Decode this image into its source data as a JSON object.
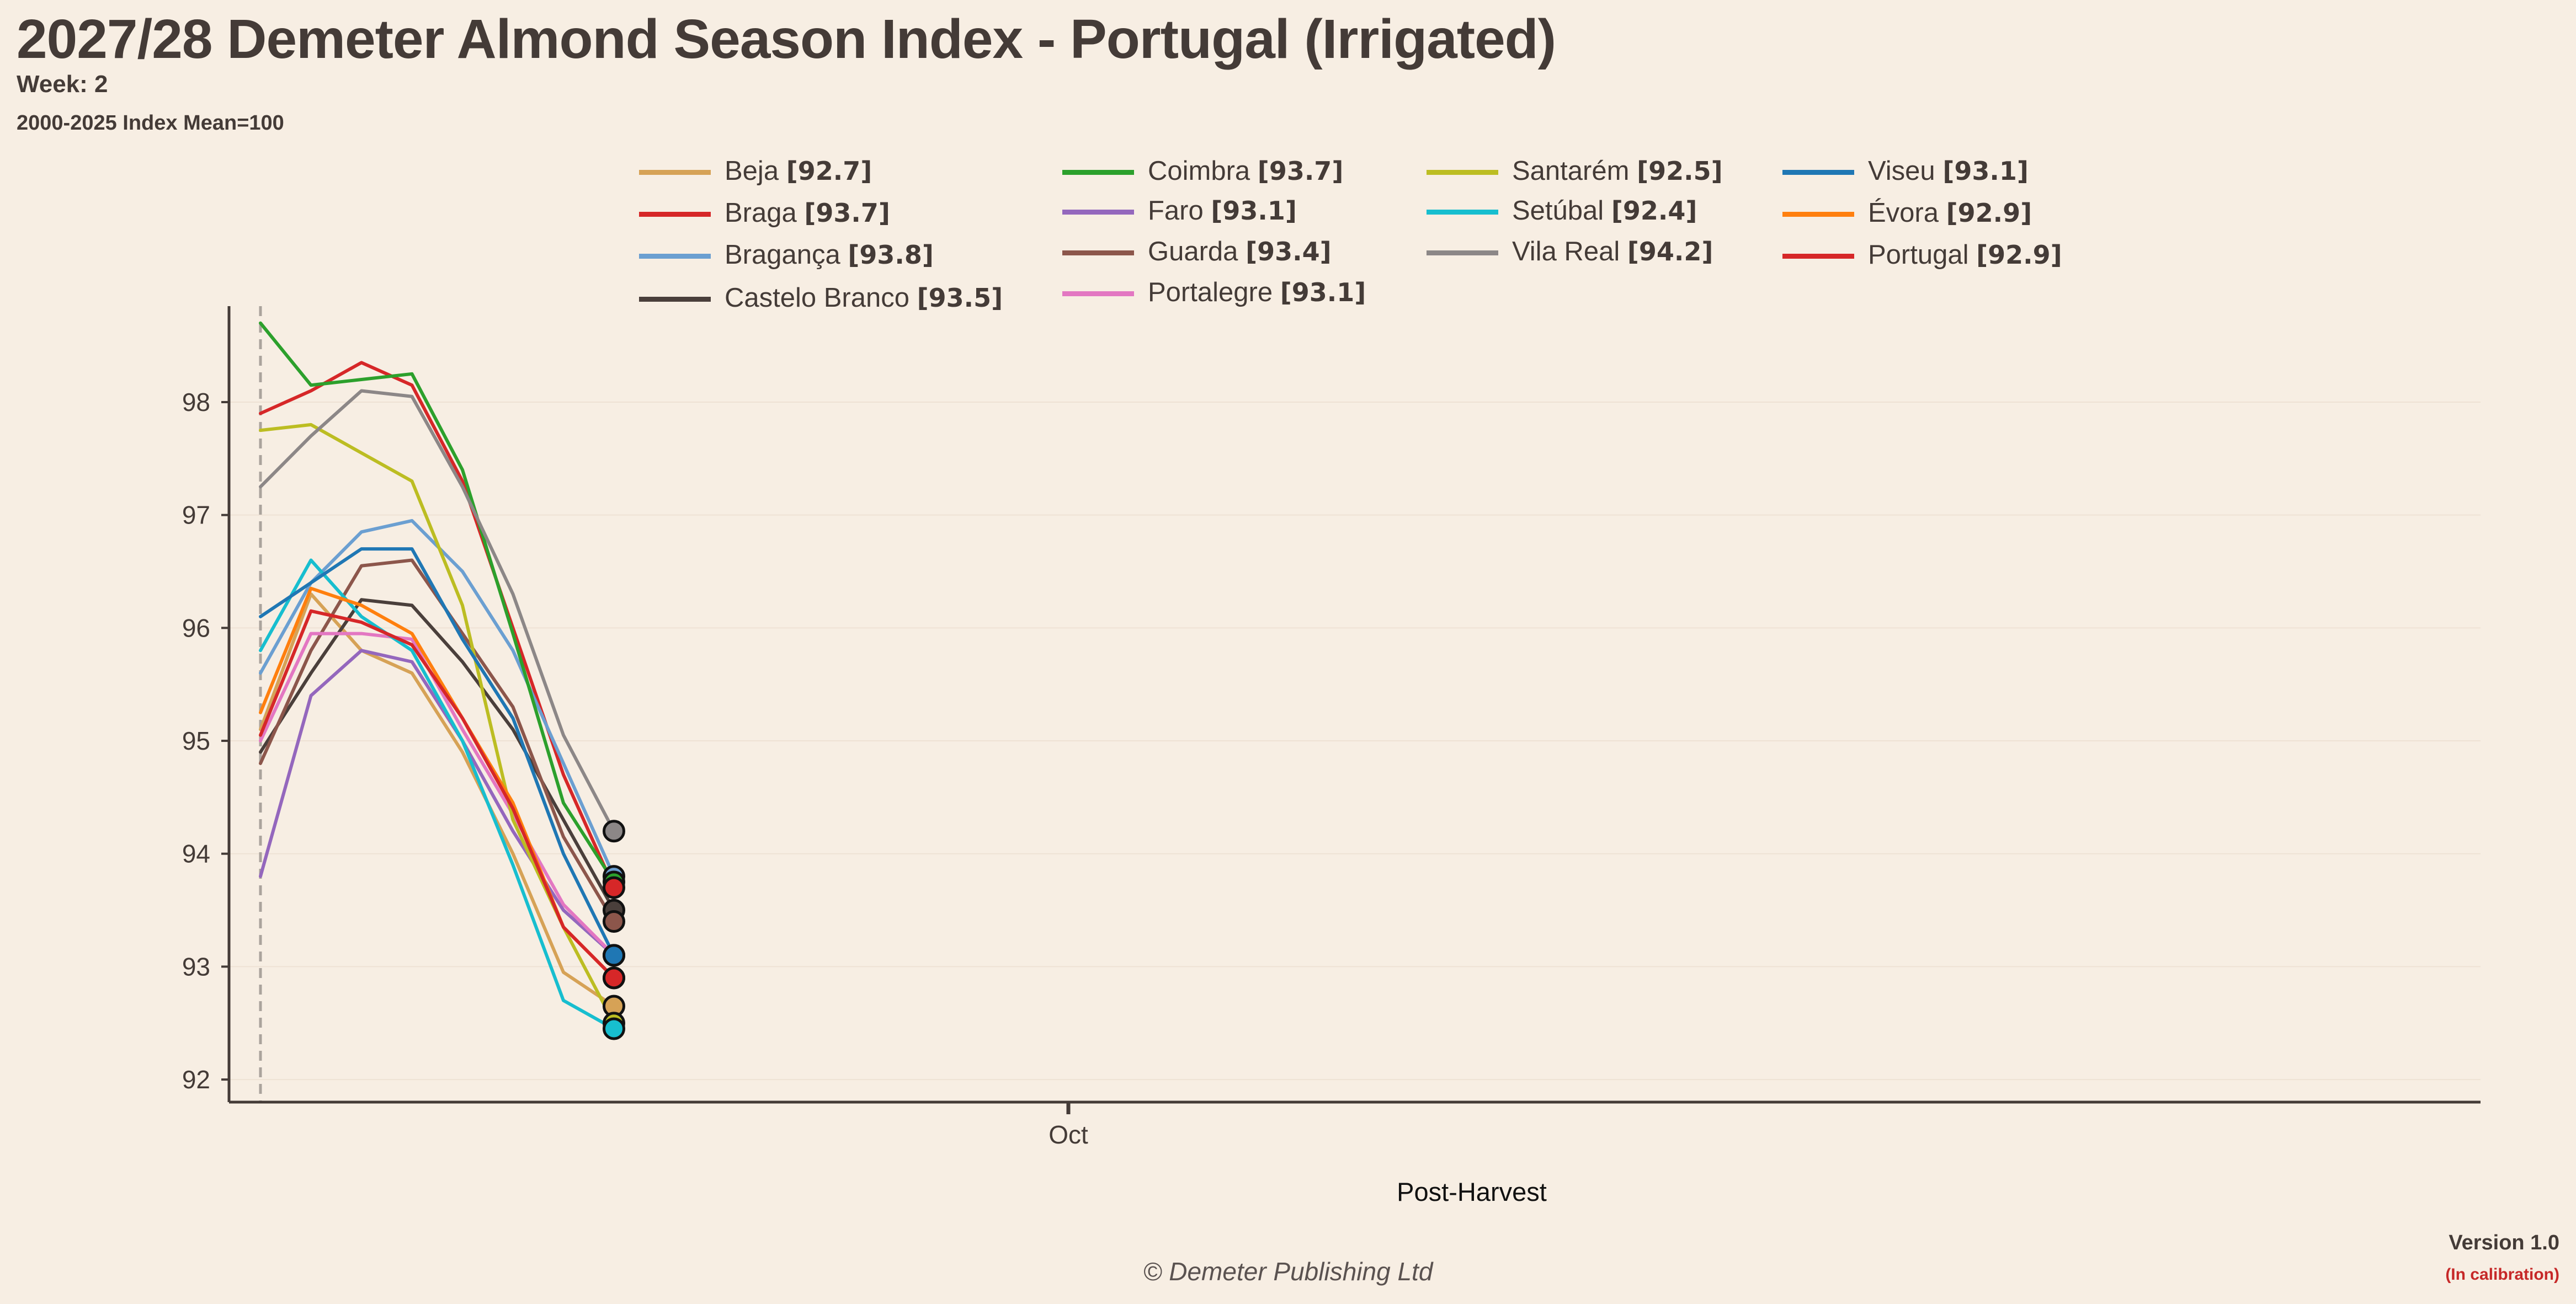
{
  "title": "2027/28 Demeter Almond Season Index - Portugal (Irrigated)",
  "week": "Week: 2",
  "subtitle": "2000-2025 Index Mean=100",
  "credit": "© Demeter Publishing Ltd",
  "version": "Version 1.0",
  "calibration": "(In calibration)",
  "chart_data": {
    "type": "line",
    "title": "2027/28 Demeter Almond Season Index - Portugal (Irrigated)",
    "xlabel": "Post-Harvest",
    "ylabel": "",
    "x": [
      0,
      1,
      2,
      3,
      4,
      5,
      6,
      7
    ],
    "x_ticks": [
      {
        "x": 16,
        "label": "Oct"
      }
    ],
    "xlim": [
      -0.6,
      43.6
    ],
    "ylim": [
      91.8,
      98.85
    ],
    "yticks": [
      92,
      93,
      94,
      95,
      96,
      97,
      98
    ],
    "grid": "horizontal",
    "legend_placement": "top",
    "series": [
      {
        "name": "Beja",
        "latest": "92.7",
        "color": "#d6a256",
        "values": [
          95.1,
          96.3,
          95.8,
          95.6,
          94.9,
          94.0,
          92.95,
          92.65
        ]
      },
      {
        "name": "Braga",
        "latest": "93.7",
        "color": "#d62728",
        "values": [
          97.9,
          98.1,
          98.35,
          98.15,
          97.3,
          96.0,
          94.7,
          93.7
        ]
      },
      {
        "name": "Bragança",
        "latest": "93.8",
        "color": "#6b9fd1",
        "values": [
          95.6,
          96.4,
          96.85,
          96.95,
          96.5,
          95.8,
          94.8,
          93.8
        ]
      },
      {
        "name": "Castelo Branco",
        "latest": "93.5",
        "color": "#4a3f3b",
        "values": [
          94.9,
          95.6,
          96.25,
          96.2,
          95.7,
          95.1,
          94.3,
          93.5
        ]
      },
      {
        "name": "Coimbra",
        "latest": "93.7",
        "color": "#2ca02c",
        "values": [
          98.7,
          98.15,
          98.2,
          98.25,
          97.4,
          95.95,
          94.45,
          93.75
        ]
      },
      {
        "name": "Faro",
        "latest": "93.1",
        "color": "#9467bd",
        "values": [
          93.8,
          95.4,
          95.8,
          95.7,
          95.0,
          94.2,
          93.5,
          93.1
        ]
      },
      {
        "name": "Guarda",
        "latest": "93.4",
        "color": "#8c564b",
        "values": [
          94.8,
          95.8,
          96.55,
          96.6,
          95.95,
          95.3,
          94.15,
          93.4
        ]
      },
      {
        "name": "Portalegre",
        "latest": "93.1",
        "color": "#e377c2",
        "values": [
          95.0,
          95.95,
          95.95,
          95.9,
          95.1,
          94.35,
          93.55,
          93.1
        ]
      },
      {
        "name": "Santarém",
        "latest": "92.5",
        "color": "#bcbd22",
        "values": [
          97.75,
          97.8,
          97.55,
          97.3,
          96.2,
          94.3,
          93.35,
          92.5
        ]
      },
      {
        "name": "Setúbal",
        "latest": "92.4",
        "color": "#17becf",
        "values": [
          95.8,
          96.6,
          96.1,
          95.8,
          95.0,
          93.9,
          92.7,
          92.45
        ]
      },
      {
        "name": "Vila Real",
        "latest": "94.2",
        "color": "#8c8787",
        "values": [
          97.25,
          97.7,
          98.1,
          98.05,
          97.25,
          96.3,
          95.05,
          94.2
        ]
      },
      {
        "name": "Viseu",
        "latest": "93.1",
        "color": "#1f77b4",
        "values": [
          96.1,
          96.4,
          96.7,
          96.7,
          95.9,
          95.2,
          94.0,
          93.1
        ]
      },
      {
        "name": "Évora",
        "latest": "92.9",
        "color": "#ff7f0e",
        "values": [
          95.25,
          96.35,
          96.2,
          95.95,
          95.2,
          94.45,
          93.35,
          92.9
        ]
      },
      {
        "name": "Portugal",
        "latest": "92.9",
        "color": "#d62728",
        "values": [
          95.05,
          96.15,
          96.05,
          95.85,
          95.2,
          94.4,
          93.35,
          92.9
        ]
      }
    ]
  }
}
